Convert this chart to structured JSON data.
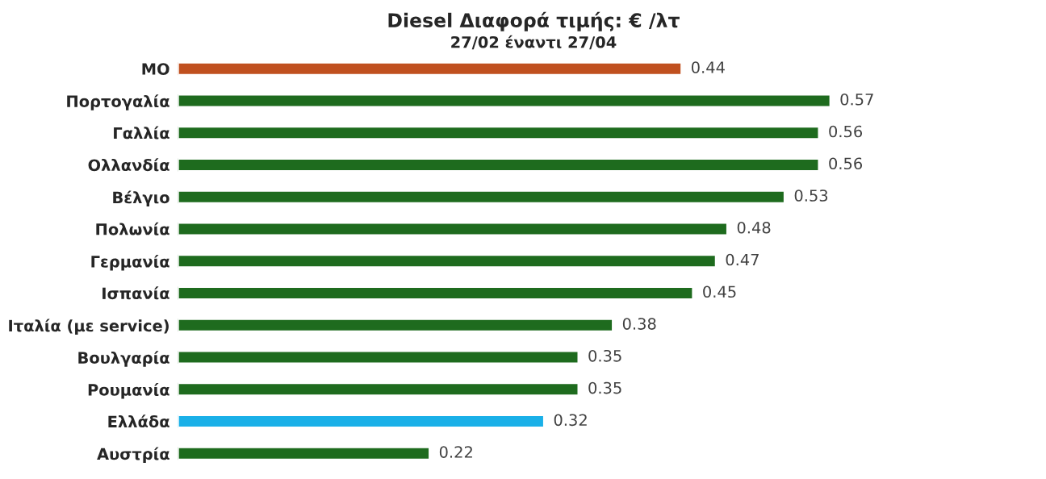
{
  "chart_data": {
    "type": "bar",
    "orientation": "horizontal",
    "title": "Diesel Διαφορά τιμής: € /λτ",
    "subtitle": "27/02 έναντι 27/04",
    "categories": [
      "ΜΟ",
      "Πορτογαλία",
      "Γαλλία",
      "Ολλανδία",
      "Βέλγιο",
      "Πολωνία",
      "Γερμανία",
      "Ισπανία",
      "Ιταλία (με service)",
      "Βουλγαρία",
      "Ρουμανία",
      "Ελλάδα",
      "Αυστρία"
    ],
    "values": [
      0.44,
      0.57,
      0.56,
      0.56,
      0.53,
      0.48,
      0.47,
      0.45,
      0.38,
      0.35,
      0.35,
      0.32,
      0.22
    ],
    "colors": [
      "#c0501f",
      "#1e6b1e",
      "#1e6b1e",
      "#1e6b1e",
      "#1e6b1e",
      "#1e6b1e",
      "#1e6b1e",
      "#1e6b1e",
      "#1e6b1e",
      "#1e6b1e",
      "#1e6b1e",
      "#1ab0e8",
      "#1e6b1e"
    ],
    "data_labels": true,
    "grid": false,
    "legend": false
  }
}
